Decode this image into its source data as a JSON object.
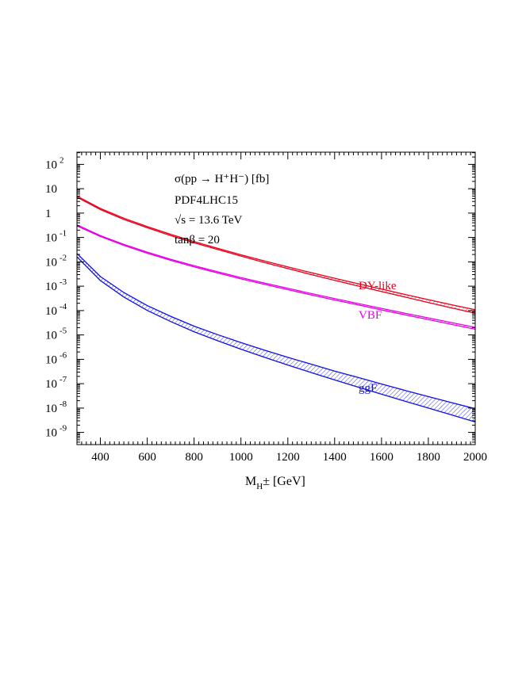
{
  "chart_data": {
    "type": "line",
    "title": "",
    "annotations": {
      "process": "σ(pp → H⁺H⁻) [fb]",
      "pdf": "PDF4LHC15",
      "energy": "√s = 13.6 TeV",
      "tanbeta": "tanβ = 20"
    },
    "xlabel": {
      "main": "M",
      "sub": "H",
      "suffix": "± [GeV]"
    },
    "ylabel": "",
    "xlim": [
      300,
      2000
    ],
    "ylim_log10": [
      -9.5,
      2.5
    ],
    "yscale": "log",
    "grid": false,
    "xticks": [
      400,
      600,
      800,
      1000,
      1200,
      1400,
      1600,
      1800,
      2000
    ],
    "yticks": [
      {
        "exp": 2,
        "base": "10",
        "sup": "2"
      },
      {
        "exp": 1,
        "base": "10",
        "sup": ""
      },
      {
        "exp": 0,
        "base": "1",
        "sup": ""
      },
      {
        "exp": -1,
        "base": "10",
        "sup": "-1"
      },
      {
        "exp": -2,
        "base": "10",
        "sup": "-2"
      },
      {
        "exp": -3,
        "base": "10",
        "sup": "-3"
      },
      {
        "exp": -4,
        "base": "10",
        "sup": "-4"
      },
      {
        "exp": -5,
        "base": "10",
        "sup": "-5"
      },
      {
        "exp": -6,
        "base": "10",
        "sup": "-6"
      },
      {
        "exp": -7,
        "base": "10",
        "sup": "-7"
      },
      {
        "exp": -8,
        "base": "10",
        "sup": "-8"
      },
      {
        "exp": -9,
        "base": "10",
        "sup": "-9"
      }
    ],
    "x": [
      300,
      400,
      500,
      600,
      700,
      800,
      900,
      1000,
      1100,
      1200,
      1300,
      1400,
      1500,
      1600,
      1700,
      1800,
      1900,
      2000
    ],
    "series": [
      {
        "name": "DY-like",
        "color": "#e8001c",
        "upper": [
          5.0,
          1.55,
          0.62,
          0.28,
          0.135,
          0.068,
          0.036,
          0.0195,
          0.0108,
          0.0062,
          0.0036,
          0.00212,
          0.00126,
          0.00076,
          0.00046,
          0.00028,
          0.000172,
          0.000108
        ],
        "lower": [
          4.5,
          1.4,
          0.55,
          0.25,
          0.12,
          0.06,
          0.032,
          0.0172,
          0.0094,
          0.0053,
          0.003,
          0.00175,
          0.00102,
          0.0006,
          0.00036,
          0.000215,
          0.000128,
          7.8e-05
        ]
      },
      {
        "name": "VBF",
        "color": "#e400e4",
        "upper": [
          0.33,
          0.12,
          0.052,
          0.025,
          0.0128,
          0.0069,
          0.0039,
          0.00225,
          0.00135,
          0.00082,
          0.0005,
          0.00031,
          0.000195,
          0.000123,
          7.8e-05,
          5e-05,
          3.2e-05,
          2.05e-05
        ],
        "lower": [
          0.3,
          0.11,
          0.047,
          0.0225,
          0.0115,
          0.0062,
          0.0035,
          0.002,
          0.0012,
          0.00072,
          0.00044,
          0.00027,
          0.00017,
          0.000106,
          6.7e-05,
          4.25e-05,
          2.7e-05,
          1.72e-05
        ]
      },
      {
        "name": "ggF",
        "color": "#1010e0",
        "upper": [
          0.022,
          0.0025,
          0.00055,
          0.00016,
          5.8e-05,
          2.3e-05,
          1.03e-05,
          4.9e-06,
          2.4e-06,
          1.2e-06,
          6.3e-07,
          3.3e-07,
          1.8e-07,
          9.7e-08,
          5.3e-08,
          2.95e-08,
          1.66e-08,
          9.4e-09
        ],
        "lower": [
          0.016,
          0.0017,
          0.00036,
          0.000101,
          3.55e-05,
          1.35e-05,
          5.8e-06,
          2.6e-06,
          1.22e-06,
          5.8e-07,
          2.85e-07,
          1.42e-07,
          7.2e-08,
          3.7e-08,
          1.92e-08,
          1e-08,
          5.2e-09,
          2.7e-09
        ]
      }
    ]
  }
}
